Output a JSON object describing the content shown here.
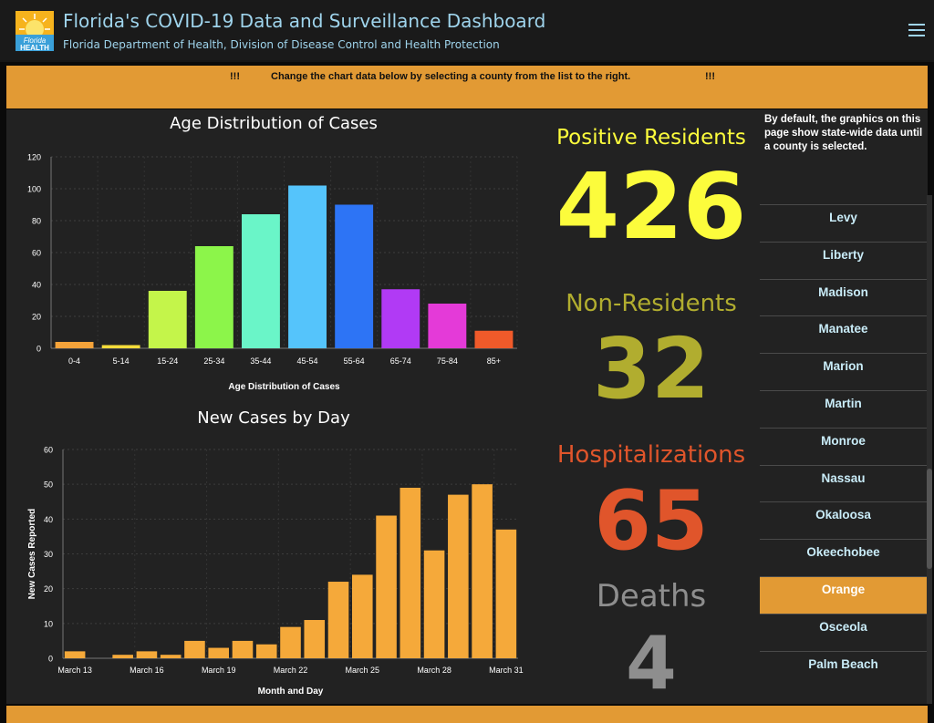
{
  "header": {
    "logo_text": "Florida HEALTH",
    "title": "Florida's COVID-19 Data and Surveillance Dashboard",
    "subtitle": "Florida Department of Health, Division of Disease Control and Health Protection",
    "menu_icon": "hamburger-menu-icon"
  },
  "banner": {
    "left_mark": "!!!",
    "text": "Change the chart data below by selecting a county from the list to the right.",
    "right_mark": "!!!"
  },
  "stats": {
    "positive_label": "Positive Residents",
    "positive_value": "426",
    "nonres_label": "Non-Residents",
    "nonres_value": "32",
    "hosp_label": "Hospitalizations",
    "hosp_value": "65",
    "deaths_label": "Deaths",
    "deaths_value": "4"
  },
  "colors": {
    "accent": "#e29a34",
    "title_text": "#9fd4ec",
    "positive": "#fcfc3c",
    "nonresident": "#b1ad2f",
    "hospitalization": "#e0552b",
    "deaths": "#8e8e8e",
    "county_text": "#c9ecf8"
  },
  "counties": {
    "note": "By default, the graphics on this page show state-wide data until a county is selected.",
    "items": [
      "Levy",
      "Liberty",
      "Madison",
      "Manatee",
      "Marion",
      "Martin",
      "Monroe",
      "Nassau",
      "Okaloosa",
      "Okeechobee",
      "Orange",
      "Osceola",
      "Palm Beach"
    ],
    "selected": "Orange"
  },
  "chart_data": [
    {
      "type": "bar",
      "title": "Age Distribution of Cases",
      "xlabel": "Age Distribution of Cases",
      "ylabel": "",
      "categories": [
        "0-4",
        "5-14",
        "15-24",
        "25-34",
        "35-44",
        "45-54",
        "55-64",
        "65-74",
        "75-84",
        "85+"
      ],
      "values": [
        4,
        2,
        36,
        64,
        84,
        102,
        90,
        37,
        28,
        11
      ],
      "colors": [
        "#f5a33a",
        "#f5dc3a",
        "#c4f54a",
        "#8cf54a",
        "#6af5c8",
        "#55c4fb",
        "#2d74f5",
        "#b13af5",
        "#e43ad8",
        "#f05a2a"
      ],
      "yticks": [
        0,
        20,
        40,
        60,
        80,
        100,
        120
      ],
      "ylim": [
        0,
        120
      ],
      "grid": true
    },
    {
      "type": "bar",
      "title": "New Cases by Day",
      "xlabel": "Month and Day",
      "ylabel": "New Cases Reported",
      "categories": [
        "March 13",
        "March 14",
        "March 15",
        "March 16",
        "March 17",
        "March 18",
        "March 19",
        "March 20",
        "March 21",
        "March 22",
        "March 23",
        "March 24",
        "March 25",
        "March 26",
        "March 27",
        "March 28",
        "March 29",
        "March 30",
        "March 31"
      ],
      "tick_labels": [
        "March 13",
        "March 16",
        "March 19",
        "March 22",
        "March 25",
        "March 28",
        "March 31"
      ],
      "values": [
        2,
        0,
        1,
        2,
        1,
        5,
        3,
        5,
        4,
        9,
        11,
        22,
        24,
        41,
        49,
        31,
        47,
        50,
        37
      ],
      "color": "#f5a93a",
      "yticks": [
        0,
        10,
        20,
        30,
        40,
        50,
        60
      ],
      "ylim": [
        0,
        60
      ],
      "grid": true
    }
  ]
}
